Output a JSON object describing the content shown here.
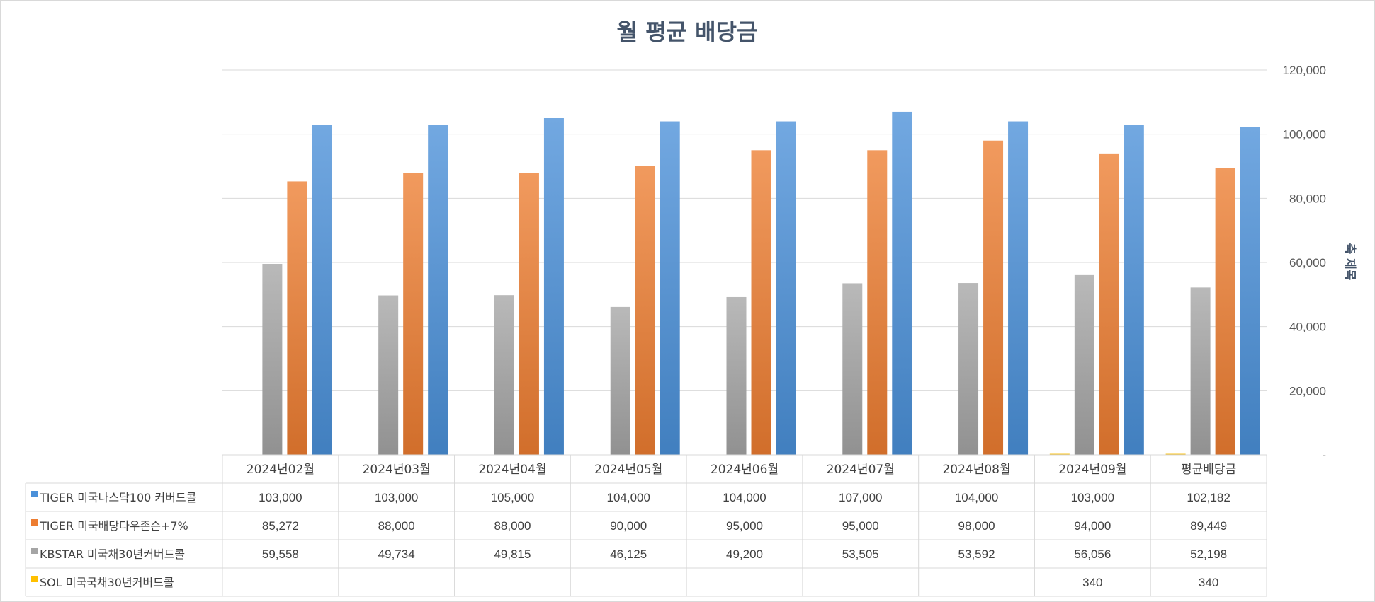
{
  "chart_data": {
    "type": "bar",
    "title": "월 평균 배당금",
    "ylabel": "축 제목",
    "ylim": [
      0,
      120000
    ],
    "y_ticks": [
      "-",
      "20,000",
      "40,000",
      "60,000",
      "80,000",
      "100,000",
      "120,000"
    ],
    "y_axis_side": "right",
    "grid": true,
    "legend": "data-table",
    "categories": [
      "2024년02월",
      "2024년03월",
      "2024년04월",
      "2024년05월",
      "2024년06월",
      "2024년07월",
      "2024년08월",
      "2024년09월",
      "평균배당금"
    ],
    "series": [
      {
        "name": "TIGER 미국나스닥100 커버드콜",
        "color": "#4a90d9",
        "values": [
          103000,
          103000,
          105000,
          104000,
          104000,
          107000,
          104000,
          103000,
          102182
        ],
        "labels": [
          "103,000",
          "103,000",
          "105,000",
          "104,000",
          "104,000",
          "107,000",
          "104,000",
          "103,000",
          "102,182"
        ]
      },
      {
        "name": "TIGER 미국배당다우존슨+7%",
        "color": "#ed7d31",
        "values": [
          85272,
          88000,
          88000,
          90000,
          95000,
          95000,
          98000,
          94000,
          89449
        ],
        "labels": [
          "85,272",
          "88,000",
          "88,000",
          "90,000",
          "95,000",
          "95,000",
          "98,000",
          "94,000",
          "89,449"
        ]
      },
      {
        "name": "KBSTAR 미국채30년커버드콜",
        "color": "#a5a5a5",
        "values": [
          59558,
          49734,
          49815,
          46125,
          49200,
          53505,
          53592,
          56056,
          52198
        ],
        "labels": [
          "59,558",
          "49,734",
          "49,815",
          "46,125",
          "49,200",
          "53,505",
          "53,592",
          "56,056",
          "52,198"
        ]
      },
      {
        "name": "SOL 미국국채30년커버드콜",
        "color": "#ffc000",
        "values": [
          null,
          null,
          null,
          null,
          null,
          null,
          null,
          340,
          340
        ],
        "labels": [
          "",
          "",
          "",
          "",
          "",
          "",
          "",
          "340",
          "340"
        ]
      }
    ]
  }
}
